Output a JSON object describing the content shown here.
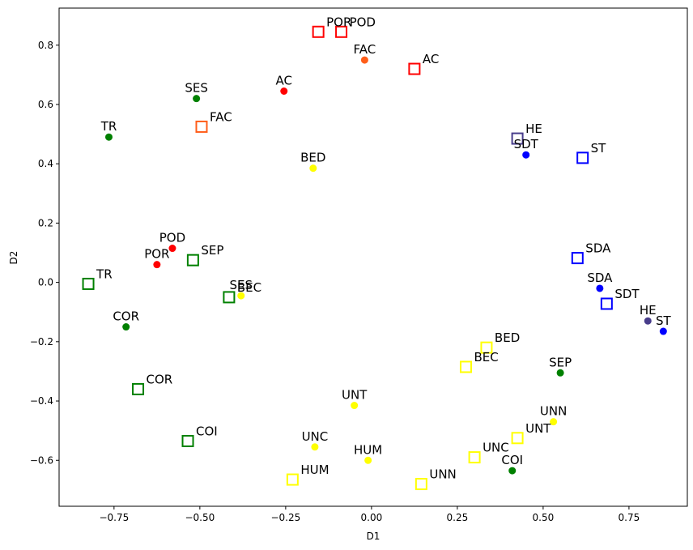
{
  "chart_data": {
    "type": "scatter",
    "title": "",
    "xlabel": "D1",
    "ylabel": "D2",
    "xlim": [
      -0.91,
      0.92
    ],
    "ylim": [
      -0.755,
      0.925
    ],
    "xticks": [
      -0.75,
      -0.5,
      -0.25,
      0.0,
      0.25,
      0.5,
      0.75
    ],
    "xtick_labels": [
      "−0.75",
      "−0.50",
      "−0.25",
      "0.00",
      "0.25",
      "0.50",
      "0.75"
    ],
    "yticks": [
      -0.6,
      -0.4,
      -0.2,
      0.0,
      0.2,
      0.4,
      0.6,
      0.8
    ],
    "ytick_labels": [
      "−0.6",
      "−0.4",
      "−0.2",
      "0.0",
      "0.2",
      "0.4",
      "0.6",
      "0.8"
    ],
    "grid": false,
    "series": [
      {
        "name": "circles",
        "marker": "circle",
        "points": [
          {
            "label": "POD",
            "x": -0.58,
            "y": 0.115,
            "color": "#ff0000"
          },
          {
            "label": "POR",
            "x": -0.625,
            "y": 0.06,
            "color": "#ff0000"
          },
          {
            "label": "AC",
            "x": -0.255,
            "y": 0.645,
            "color": "#ff0000"
          },
          {
            "label": "FAC",
            "x": -0.02,
            "y": 0.75,
            "color": "#ff5e1a"
          },
          {
            "label": "SES",
            "x": -0.51,
            "y": 0.62,
            "color": "#008000"
          },
          {
            "label": "TR",
            "x": -0.765,
            "y": 0.49,
            "color": "#008000"
          },
          {
            "label": "COR",
            "x": -0.715,
            "y": -0.15,
            "color": "#008000"
          },
          {
            "label": "SEP",
            "x": 0.55,
            "y": -0.305,
            "color": "#008000"
          },
          {
            "label": "COI",
            "x": 0.41,
            "y": -0.635,
            "color": "#008000"
          },
          {
            "label": "BED",
            "x": -0.17,
            "y": 0.385,
            "color": "#ffff00"
          },
          {
            "label": "SES",
            "x": -0.38,
            "y": -0.045,
            "color": "#ffff00"
          },
          {
            "label": "UNT",
            "x": -0.05,
            "y": -0.415,
            "color": "#ffff00"
          },
          {
            "label": "UNC",
            "x": -0.165,
            "y": -0.555,
            "color": "#ffff00"
          },
          {
            "label": "HUM",
            "x": -0.01,
            "y": -0.6,
            "color": "#ffff00"
          },
          {
            "label": "UNN",
            "x": 0.53,
            "y": -0.47,
            "color": "#ffff00"
          },
          {
            "label": "SDT",
            "x": 0.45,
            "y": 0.43,
            "color": "#0000ff"
          },
          {
            "label": "SDA",
            "x": 0.665,
            "y": -0.02,
            "color": "#0000ff"
          },
          {
            "label": "ST",
            "x": 0.85,
            "y": -0.165,
            "color": "#0000ff"
          },
          {
            "label": "HE",
            "x": 0.805,
            "y": -0.13,
            "color": "#483d8b"
          }
        ]
      },
      {
        "name": "squares",
        "marker": "square",
        "points": [
          {
            "label": "POR",
            "x": -0.155,
            "y": 0.845,
            "color": "#ff0000"
          },
          {
            "label": "POD",
            "x": -0.088,
            "y": 0.845,
            "color": "#ff0000"
          },
          {
            "label": "AC",
            "x": 0.125,
            "y": 0.72,
            "color": "#ff0000"
          },
          {
            "label": "FAC",
            "x": -0.495,
            "y": 0.525,
            "color": "#ff5e1a"
          },
          {
            "label": "TR",
            "x": -0.825,
            "y": -0.005,
            "color": "#008000"
          },
          {
            "label": "SEP",
            "x": -0.52,
            "y": 0.075,
            "color": "#008000"
          },
          {
            "label": "BEC",
            "x": -0.415,
            "y": -0.05,
            "color": "#008000"
          },
          {
            "label": "COR",
            "x": -0.68,
            "y": -0.36,
            "color": "#008000"
          },
          {
            "label": "COI",
            "x": -0.535,
            "y": -0.535,
            "color": "#008000"
          },
          {
            "label": "HUM",
            "x": -0.23,
            "y": -0.665,
            "color": "#ffff00"
          },
          {
            "label": "UNN",
            "x": 0.145,
            "y": -0.68,
            "color": "#ffff00"
          },
          {
            "label": "UNC",
            "x": 0.3,
            "y": -0.59,
            "color": "#ffff00"
          },
          {
            "label": "UNT",
            "x": 0.425,
            "y": -0.525,
            "color": "#ffff00"
          },
          {
            "label": "BEC",
            "x": 0.275,
            "y": -0.285,
            "color": "#ffff00"
          },
          {
            "label": "BED",
            "x": 0.335,
            "y": -0.22,
            "color": "#ffff00"
          },
          {
            "label": "HE",
            "x": 0.425,
            "y": 0.485,
            "color": "#483d8b"
          },
          {
            "label": "ST",
            "x": 0.615,
            "y": 0.42,
            "color": "#0000ff"
          },
          {
            "label": "SDA",
            "x": 0.6,
            "y": 0.082,
            "color": "#0000ff"
          },
          {
            "label": "SDT",
            "x": 0.685,
            "y": -0.072,
            "color": "#0000ff"
          }
        ]
      }
    ]
  }
}
